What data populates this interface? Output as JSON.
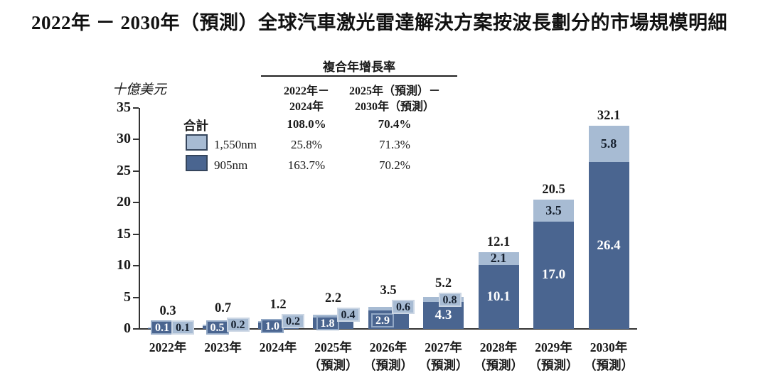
{
  "title": "2022年 － 2030年（預測）全球汽車激光雷達解決方案按波長劃分的市場規模明細",
  "colors": {
    "dark_series": "#4a6590",
    "light_series": "#a7bbd3",
    "swatch_border": "#35455c",
    "axis": "#333333",
    "text": "#1a1a1a",
    "inbar_light_text": "#ffffff",
    "inbar_dark_text": "#16202e"
  },
  "cagr_table": {
    "header": "複合年增長率",
    "col_headers": [
      {
        "line1": "2022年－",
        "line2": "2024年"
      },
      {
        "line1": "2025年（預測）－",
        "line2": "2030年（預測）"
      }
    ],
    "rows": [
      {
        "label": "合計",
        "values": [
          "108.0%",
          "70.4%"
        ]
      },
      {
        "label": "1,550nm",
        "values": [
          "25.8%",
          "71.3%"
        ]
      },
      {
        "label": "905nm",
        "values": [
          "163.7%",
          "70.2%"
        ]
      }
    ]
  },
  "legend": {
    "total_label": "合計",
    "series": [
      {
        "name": "1,550nm",
        "color": "#a7bbd3"
      },
      {
        "name": "905nm",
        "color": "#4a6590"
      }
    ]
  },
  "chart_data": {
    "type": "bar",
    "stacked": true,
    "title": "2022年 － 2030年（預測）全球汽車激光雷達解決方案按波長劃分的市場規模明細",
    "ylabel": "十億美元",
    "ylim": [
      0,
      35
    ],
    "y_ticks": [
      0,
      5,
      10,
      15,
      20,
      25,
      30,
      35
    ],
    "grid": false,
    "legend_position": "upper-left",
    "categories": [
      {
        "line1": "2022年",
        "line2": ""
      },
      {
        "line1": "2023年",
        "line2": ""
      },
      {
        "line1": "2024年",
        "line2": ""
      },
      {
        "line1": "2025年",
        "line2": "（預測）"
      },
      {
        "line1": "2026年",
        "line2": "（預測）"
      },
      {
        "line1": "2027年",
        "line2": "（預測）"
      },
      {
        "line1": "2028年",
        "line2": "（預測）"
      },
      {
        "line1": "2029年",
        "line2": "（預測）"
      },
      {
        "line1": "2030年",
        "line2": "（預測）"
      }
    ],
    "series": [
      {
        "name": "905nm",
        "color": "#4a6590",
        "values": [
          0.1,
          0.5,
          1.0,
          1.8,
          2.9,
          4.3,
          10.1,
          17.0,
          26.4
        ],
        "labels": [
          "0.1",
          "0.5",
          "1.0",
          "1.8",
          "2.9",
          "4.3",
          "10.1",
          "17.0",
          "26.4"
        ]
      },
      {
        "name": "1,550nm",
        "color": "#a7bbd3",
        "values": [
          0.1,
          0.2,
          0.2,
          0.4,
          0.6,
          0.8,
          2.1,
          3.5,
          5.8
        ],
        "labels": [
          "0.1",
          "0.2",
          "0.2",
          "0.4",
          "0.6",
          "0.8",
          "2.1",
          "3.5",
          "5.8"
        ]
      }
    ],
    "totals": {
      "values": [
        0.3,
        0.7,
        1.2,
        2.2,
        3.5,
        5.2,
        12.1,
        20.5,
        32.1
      ],
      "labels": [
        "0.3",
        "0.7",
        "1.2",
        "2.2",
        "3.5",
        "5.2",
        "12.1",
        "20.5",
        "32.1"
      ]
    }
  }
}
